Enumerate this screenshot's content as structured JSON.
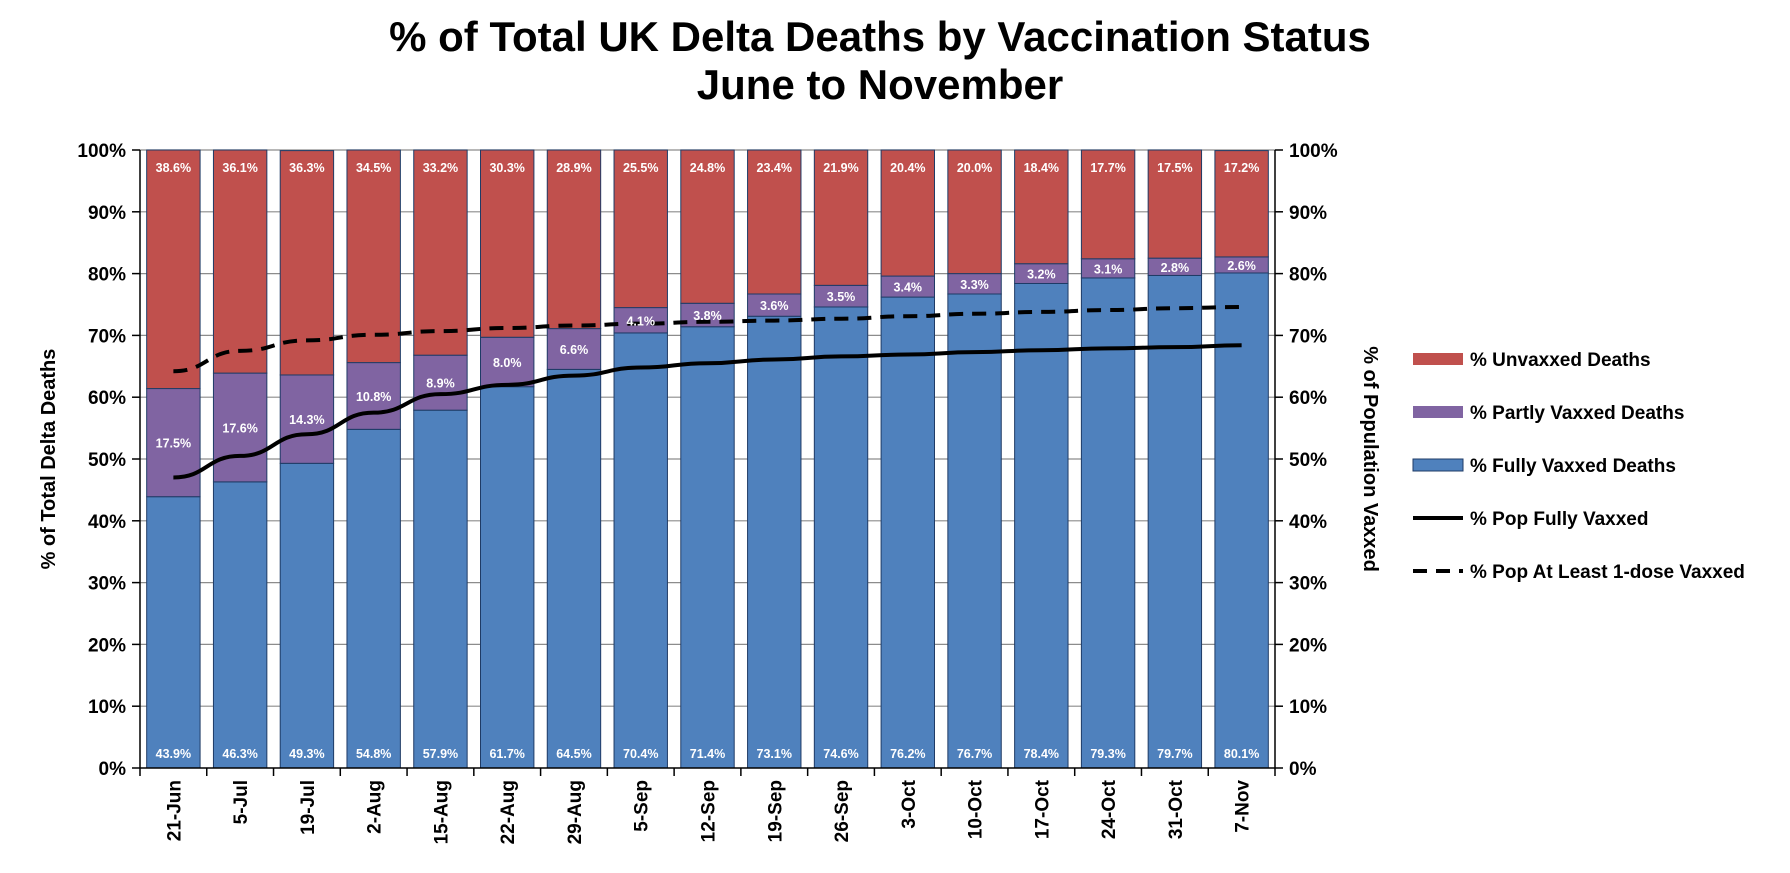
{
  "chart_data": {
    "type": "bar",
    "stacked": true,
    "title": "% of Total UK Delta Deaths by Vaccination Status",
    "subtitle": "June to November",
    "ylabel": "% of Total Delta Deaths",
    "y2label": "% of Population Vaxxed",
    "ylim": [
      0,
      100
    ],
    "y2lim": [
      0,
      100
    ],
    "yticks": [
      "0%",
      "10%",
      "20%",
      "30%",
      "40%",
      "50%",
      "60%",
      "70%",
      "80%",
      "90%",
      "100%"
    ],
    "y2ticks": [
      "0%",
      "10%",
      "20%",
      "30%",
      "40%",
      "50%",
      "60%",
      "70%",
      "80%",
      "90%",
      "100%"
    ],
    "grid": true,
    "legend_position": "right",
    "categories": [
      "21-Jun",
      "5-Jul",
      "19-Jul",
      "2-Aug",
      "15-Aug",
      "22-Aug",
      "29-Aug",
      "5-Sep",
      "12-Sep",
      "19-Sep",
      "26-Sep",
      "3-Oct",
      "10-Oct",
      "17-Oct",
      "24-Oct",
      "31-Oct",
      "7-Nov"
    ],
    "series": [
      {
        "name": "% Fully Vaxxed Deaths",
        "kind": "bar",
        "color": "#4f81bd",
        "values": [
          43.9,
          46.3,
          49.3,
          54.8,
          57.9,
          61.7,
          64.5,
          70.4,
          71.4,
          73.1,
          74.6,
          76.2,
          76.7,
          78.4,
          79.3,
          79.7,
          80.1
        ],
        "labels": [
          "43.9%",
          "46.3%",
          "49.3%",
          "54.8%",
          "57.9%",
          "61.7%",
          "64.5%",
          "70.4%",
          "71.4%",
          "73.1%",
          "74.6%",
          "76.2%",
          "76.7%",
          "78.4%",
          "79.3%",
          "79.7%",
          "80.1%"
        ]
      },
      {
        "name": "% Partly Vaxxed Deaths",
        "kind": "bar",
        "color": "#8064a2",
        "values": [
          17.5,
          17.6,
          14.3,
          10.8,
          8.9,
          8.0,
          6.6,
          4.1,
          3.8,
          3.6,
          3.5,
          3.4,
          3.3,
          3.2,
          3.1,
          2.8,
          2.6
        ],
        "labels": [
          "17.5%",
          "17.6%",
          "14.3%",
          "10.8%",
          "8.9%",
          "8.0%",
          "6.6%",
          "4.1%",
          "3.8%",
          "3.6%",
          "3.5%",
          "3.4%",
          "3.3%",
          "3.2%",
          "3.1%",
          "2.8%",
          "2.6%"
        ]
      },
      {
        "name": "% Unvaxxed Deaths",
        "kind": "bar",
        "color": "#c0504d",
        "values": [
          38.6,
          36.1,
          36.3,
          34.5,
          33.2,
          30.3,
          28.9,
          25.5,
          24.8,
          23.4,
          21.9,
          20.4,
          20.0,
          18.4,
          17.7,
          17.5,
          17.2
        ],
        "labels": [
          "38.6%",
          "36.1%",
          "36.3%",
          "34.5%",
          "33.2%",
          "30.3%",
          "28.9%",
          "25.5%",
          "24.8%",
          "23.4%",
          "21.9%",
          "20.4%",
          "20.0%",
          "18.4%",
          "17.7%",
          "17.5%",
          "17.2%"
        ]
      },
      {
        "name": "% Pop Fully Vaxxed",
        "kind": "line",
        "axis": "right",
        "dash": "solid",
        "color": "#000000",
        "values": [
          47,
          50.5,
          54,
          57.5,
          60.5,
          62,
          63.5,
          64.8,
          65.5,
          66.1,
          66.6,
          66.9,
          67.3,
          67.6,
          67.9,
          68.1,
          68.4
        ]
      },
      {
        "name": "% Pop At Least 1-dose Vaxxed",
        "kind": "line",
        "axis": "right",
        "dash": "dashed",
        "color": "#000000",
        "values": [
          64.2,
          67.5,
          69.2,
          70.1,
          70.7,
          71.2,
          71.6,
          71.9,
          72.2,
          72.4,
          72.7,
          73.1,
          73.5,
          73.8,
          74.1,
          74.4,
          74.6
        ]
      }
    ],
    "legend_order": [
      "% Unvaxxed Deaths",
      "% Partly Vaxxed Deaths",
      "% Fully Vaxxed Deaths",
      "% Pop Fully Vaxxed",
      "% Pop At Least 1-dose Vaxxed"
    ]
  }
}
